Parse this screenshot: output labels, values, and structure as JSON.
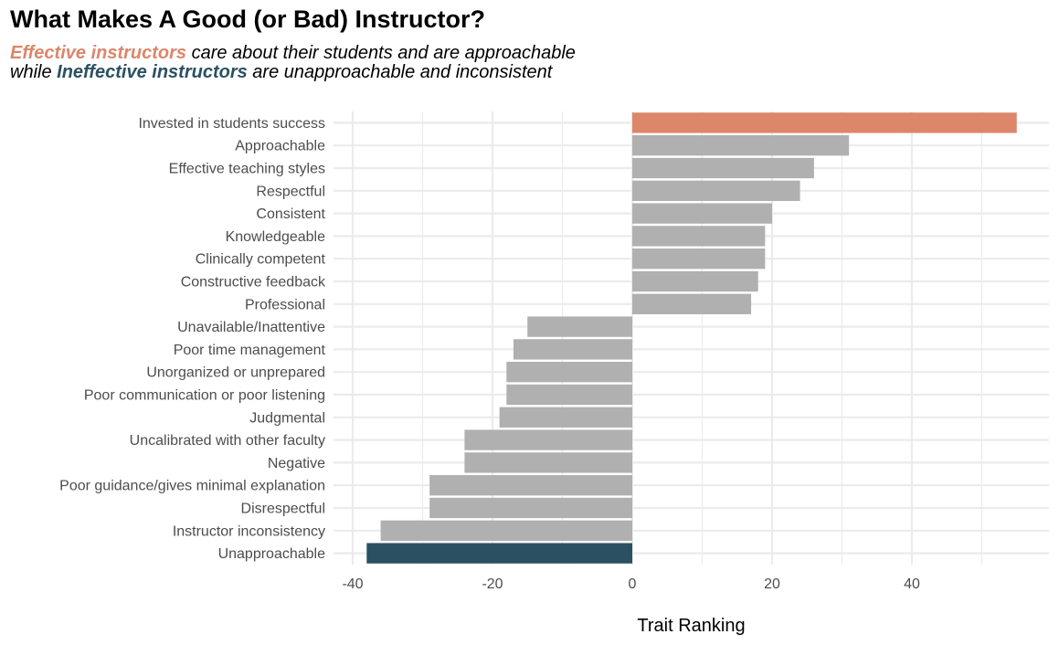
{
  "title": "What Makes A Good (or Bad) Instructor?",
  "subtitle": {
    "line1_highlight": "Effective instructors",
    "line1_rest": " care about their students and are approachable",
    "line2_prefix": "while ",
    "line2_highlight": "Ineffective instructors",
    "line2_rest": " are unapproachable and inconsistent"
  },
  "colors": {
    "effective": "#DC866A",
    "ineffective": "#2B5062",
    "neutral": "#B0B0B0",
    "grid": "#EBEBEB"
  },
  "chart_data": {
    "type": "bar",
    "orientation": "horizontal",
    "xlabel": "Trait Ranking",
    "ylabel": "",
    "xlim": [
      -40,
      55
    ],
    "xticks": [
      -40,
      -20,
      0,
      20,
      40
    ],
    "grid": true,
    "categories": [
      "Invested in students success",
      "Approachable",
      "Effective teaching styles",
      "Respectful",
      "Consistent",
      "Knowledgeable",
      "Clinically competent",
      "Constructive feedback",
      "Professional",
      "Unavailable/Inattentive",
      "Poor time management",
      "Unorganized or unprepared",
      "Poor communication or poor listening",
      "Judgmental",
      "Uncalibrated with other faculty",
      "Negative",
      "Poor guidance/gives minimal explanation",
      "Disrespectful",
      "Instructor inconsistency",
      "Unapproachable"
    ],
    "values": [
      55,
      31,
      26,
      24,
      20,
      19,
      19,
      18,
      17,
      -15,
      -17,
      -18,
      -18,
      -19,
      -24,
      -24,
      -29,
      -29,
      -36,
      -38
    ],
    "highlight": {
      "Invested in students success": "effective",
      "Unapproachable": "ineffective"
    }
  }
}
